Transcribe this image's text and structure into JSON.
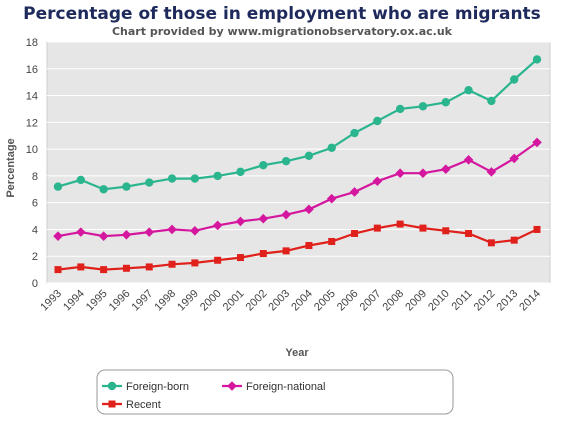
{
  "chart_data": {
    "type": "line",
    "title": "Percentage of those in employment who are migrants",
    "subtitle": "Chart provided by www.migrationobservatory.ox.ac.uk",
    "xlabel": "Year",
    "ylabel": "Percentage",
    "ylim": [
      0,
      18
    ],
    "yticks": [
      0,
      2,
      4,
      6,
      8,
      10,
      12,
      14,
      16,
      18
    ],
    "grid": true,
    "legend_position": "bottom-left",
    "x": [
      "1993",
      "1994",
      "1995",
      "1996",
      "1997",
      "1998",
      "1999",
      "2000",
      "2001",
      "2002",
      "2003",
      "2004",
      "2005",
      "2006",
      "2007",
      "2008",
      "2009",
      "2010",
      "2011",
      "2012",
      "2013",
      "2014"
    ],
    "series": [
      {
        "name": "Foreign-born",
        "color": "#2bb58f",
        "marker": "circle",
        "values": [
          7.2,
          7.7,
          7.0,
          7.2,
          7.5,
          7.8,
          7.8,
          8.0,
          8.3,
          8.8,
          9.1,
          9.5,
          10.1,
          11.2,
          12.1,
          13.0,
          13.2,
          13.5,
          14.4,
          13.6,
          15.2,
          16.7
        ]
      },
      {
        "name": "Foreign-national",
        "color": "#d4179e",
        "marker": "diamond",
        "values": [
          3.5,
          3.8,
          3.5,
          3.6,
          3.8,
          4.0,
          3.9,
          4.3,
          4.6,
          4.8,
          5.1,
          5.5,
          6.3,
          6.8,
          7.6,
          8.2,
          8.2,
          8.5,
          9.2,
          8.3,
          9.3,
          10.5
        ]
      },
      {
        "name": "Recent",
        "color": "#e0201b",
        "marker": "square",
        "values": [
          1.0,
          1.2,
          1.0,
          1.1,
          1.2,
          1.4,
          1.5,
          1.7,
          1.9,
          2.2,
          2.4,
          2.8,
          3.1,
          3.7,
          4.1,
          4.4,
          4.1,
          3.9,
          3.7,
          3.0,
          3.2,
          4.0
        ]
      }
    ]
  }
}
